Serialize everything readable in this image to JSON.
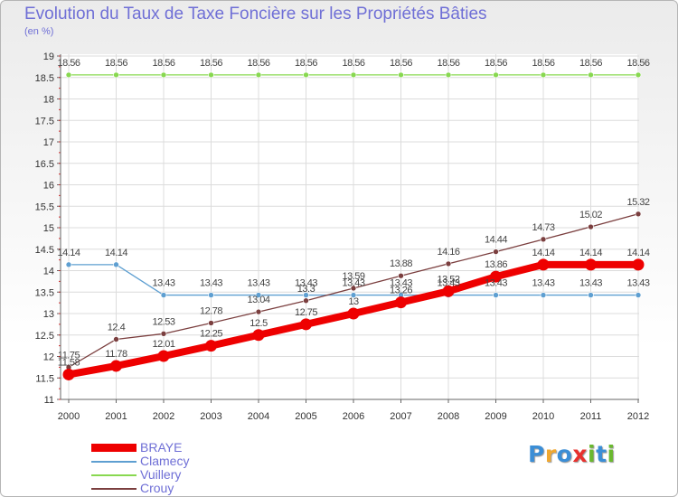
{
  "title": "Evolution du Taux de Taxe Foncière sur les Propriétés Bâties",
  "subtitle": "(en %)",
  "logo": {
    "letters": [
      "P",
      "r",
      "o",
      "x",
      "i",
      "t",
      "i"
    ],
    "colors": [
      "#3b8ed6",
      "#f0a830",
      "#3b8ed6",
      "#e8312e",
      "#6ab82f",
      "#3b8ed6",
      "#6ab82f"
    ]
  },
  "chart_data": {
    "type": "line",
    "title": "Evolution du Taux de Taxe Foncière sur les Propriétés Bâties",
    "ylabel": "(en %)",
    "xlabel": "",
    "categories": [
      "2000",
      "2001",
      "2002",
      "2003",
      "2004",
      "2005",
      "2006",
      "2007",
      "2008",
      "2009",
      "2010",
      "2011",
      "2012"
    ],
    "ylim": [
      11,
      19
    ],
    "yticks": [
      "11",
      "11.5",
      "12",
      "12.5",
      "13",
      "13.5",
      "14",
      "14.5",
      "15",
      "15.5",
      "16",
      "16.5",
      "17",
      "17.5",
      "18",
      "18.5",
      "19"
    ],
    "grid": true,
    "series": [
      {
        "name": "BRAYE",
        "color": "#ee0000",
        "thick": true,
        "values": [
          11.58,
          11.78,
          12.01,
          12.25,
          12.5,
          12.75,
          13,
          13.26,
          13.52,
          13.86,
          14.14,
          14.14,
          14.14
        ],
        "labels": [
          "11.58",
          "11.78",
          "12.01",
          "12.25",
          "12.5",
          "12.75",
          "13",
          "13.26",
          "13.52",
          "13.86",
          "14.14",
          "14.14",
          "14.14"
        ]
      },
      {
        "name": "Clamecy",
        "color": "#5e9fd1",
        "thick": false,
        "values": [
          14.14,
          14.14,
          13.43,
          13.43,
          13.43,
          13.43,
          13.43,
          13.43,
          13.43,
          13.43,
          13.43,
          13.43,
          13.43
        ],
        "labels": [
          "14.14",
          "14.14",
          "13.43",
          "13.43",
          "13.43",
          "13.43",
          "13.43",
          "13.43",
          "13.43",
          "13.43",
          "13.43",
          "13.43",
          "13.43"
        ]
      },
      {
        "name": "Vuillery",
        "color": "#88d850",
        "thick": false,
        "values": [
          18.56,
          18.56,
          18.56,
          18.56,
          18.56,
          18.56,
          18.56,
          18.56,
          18.56,
          18.56,
          18.56,
          18.56,
          18.56
        ],
        "labels": [
          "18.56",
          "18.56",
          "18.56",
          "18.56",
          "18.56",
          "18.56",
          "18.56",
          "18.56",
          "18.56",
          "18.56",
          "18.56",
          "18.56",
          "18.56"
        ]
      },
      {
        "name": "Crouy",
        "color": "#7b3f3f",
        "thick": false,
        "values": [
          11.75,
          12.4,
          12.53,
          12.78,
          13.04,
          13.3,
          13.59,
          13.88,
          14.16,
          14.44,
          14.73,
          15.02,
          15.32
        ],
        "labels": [
          "11.75",
          "12.4",
          "12.53",
          "12.78",
          "13.04",
          "13.3",
          "13.59",
          "13.88",
          "14.16",
          "14.44",
          "14.73",
          "15.02",
          "15.32"
        ]
      }
    ]
  }
}
